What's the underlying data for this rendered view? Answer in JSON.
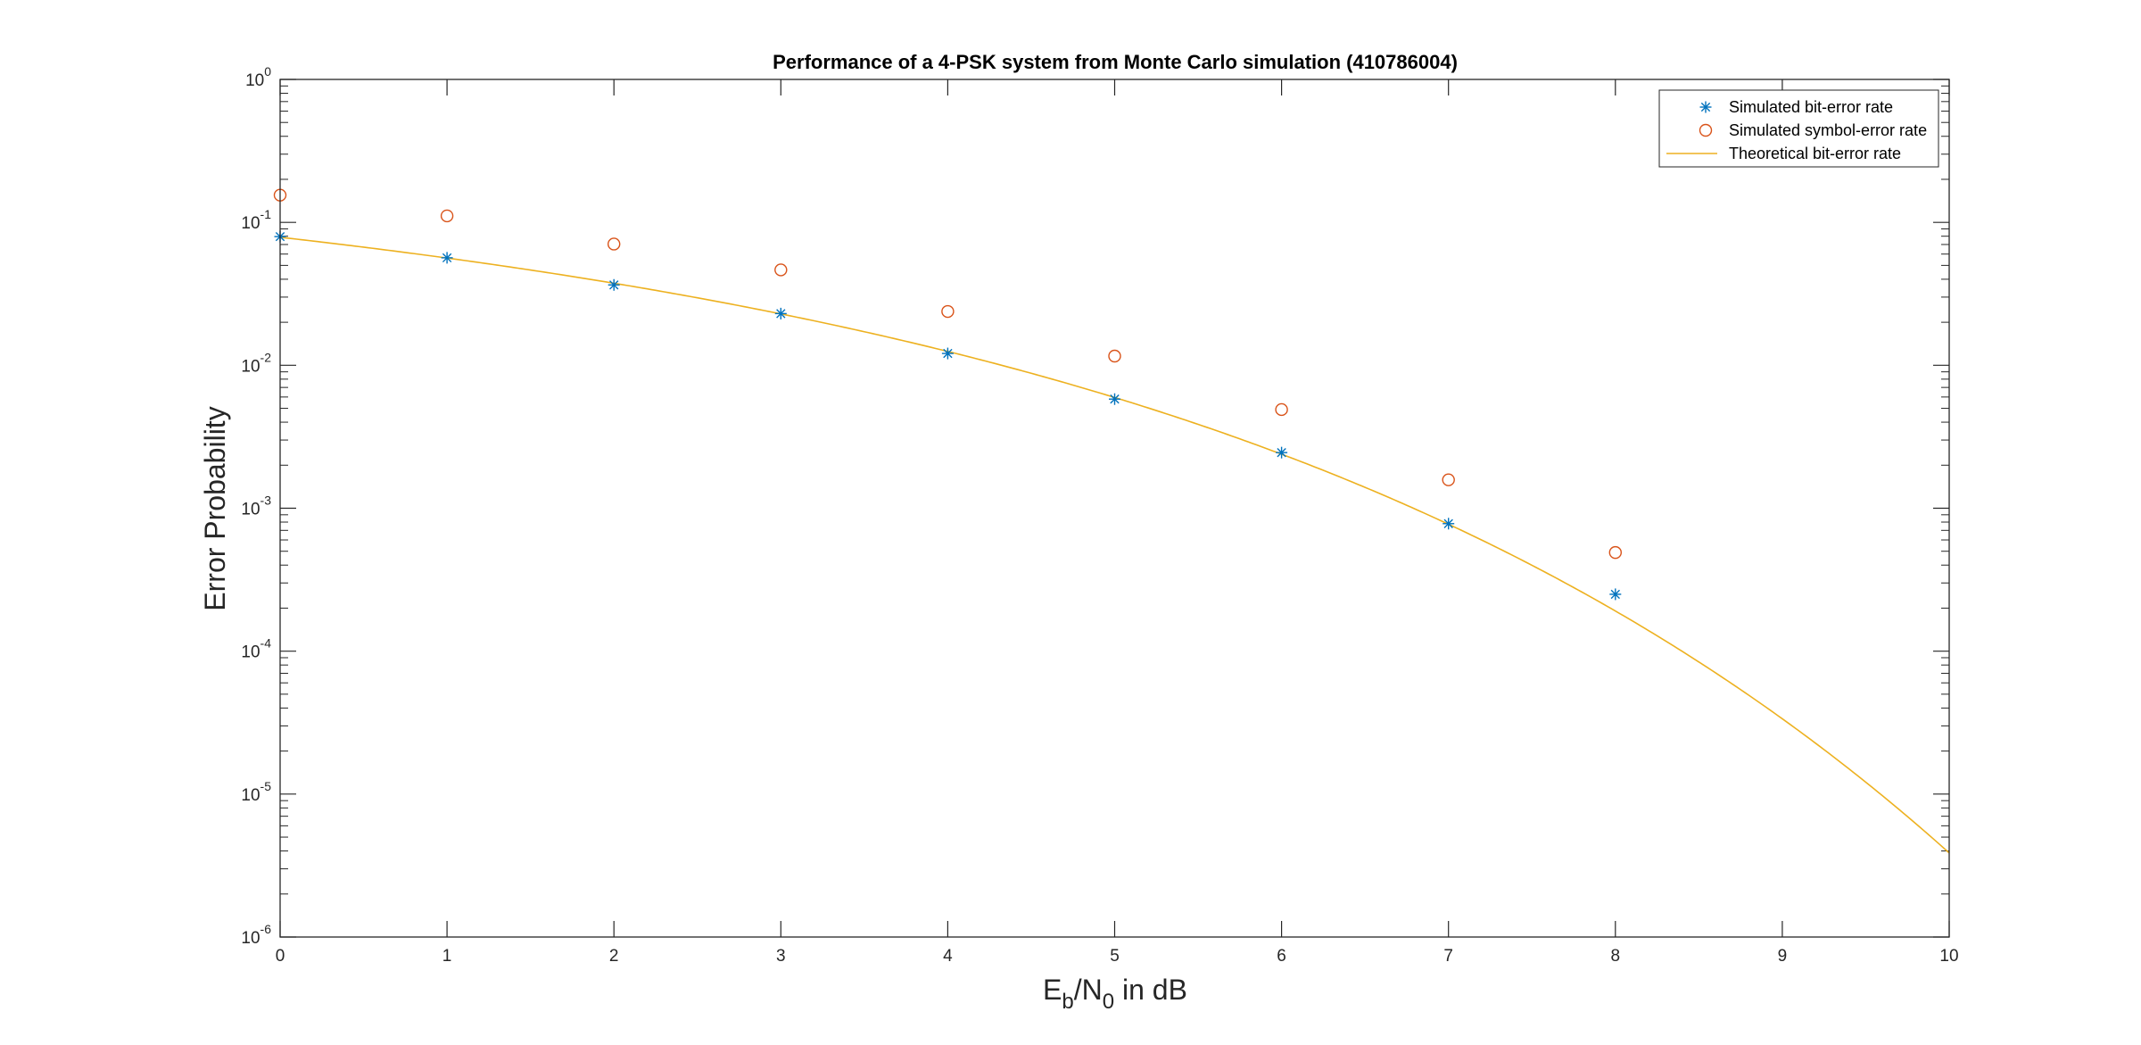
{
  "chart_data": {
    "type": "scatter",
    "title": "Performance of a 4-PSK system from Monte Carlo simulation (410786004)",
    "xlabel": {
      "base1": "E",
      "sub1": "b",
      "mid": "/N",
      "sub2": "0",
      "tail": " in dB"
    },
    "ylabel": "Error Probability",
    "xlim": [
      0,
      10
    ],
    "ylim": [
      1e-06,
      1
    ],
    "yscale": "log",
    "x_ticks": [
      "0",
      "1",
      "2",
      "3",
      "4",
      "5",
      "6",
      "7",
      "8",
      "9",
      "10"
    ],
    "y_ticks": [
      {
        "base": "10",
        "exp": "-6"
      },
      {
        "base": "10",
        "exp": "-5"
      },
      {
        "base": "10",
        "exp": "-4"
      },
      {
        "base": "10",
        "exp": "-3"
      },
      {
        "base": "10",
        "exp": "-2"
      },
      {
        "base": "10",
        "exp": "-1"
      },
      {
        "base": "10",
        "exp": "0"
      }
    ],
    "grid": false,
    "legend_position": "top-right",
    "series": [
      {
        "name": "Simulated bit-error rate",
        "marker": "asterisk",
        "color": "#0072BD",
        "x": [
          0,
          1,
          2,
          3,
          4,
          5,
          6,
          7,
          8
        ],
        "y": [
          0.0795,
          0.0565,
          0.0365,
          0.023,
          0.0121,
          0.0058,
          0.00245,
          0.00078,
          0.00025
        ]
      },
      {
        "name": "Simulated symbol-error rate",
        "marker": "circle",
        "color": "#D95319",
        "x": [
          0,
          1,
          2,
          3,
          4,
          5,
          6,
          7,
          8
        ],
        "y": [
          0.155,
          0.111,
          0.0705,
          0.0465,
          0.0238,
          0.0116,
          0.0049,
          0.00158,
          0.00049
        ]
      },
      {
        "name": "Theoretical bit-error rate",
        "marker": "line",
        "color": "#EDB120",
        "function": "0.5*erfc(sqrt(10^(x/10)))"
      }
    ]
  }
}
